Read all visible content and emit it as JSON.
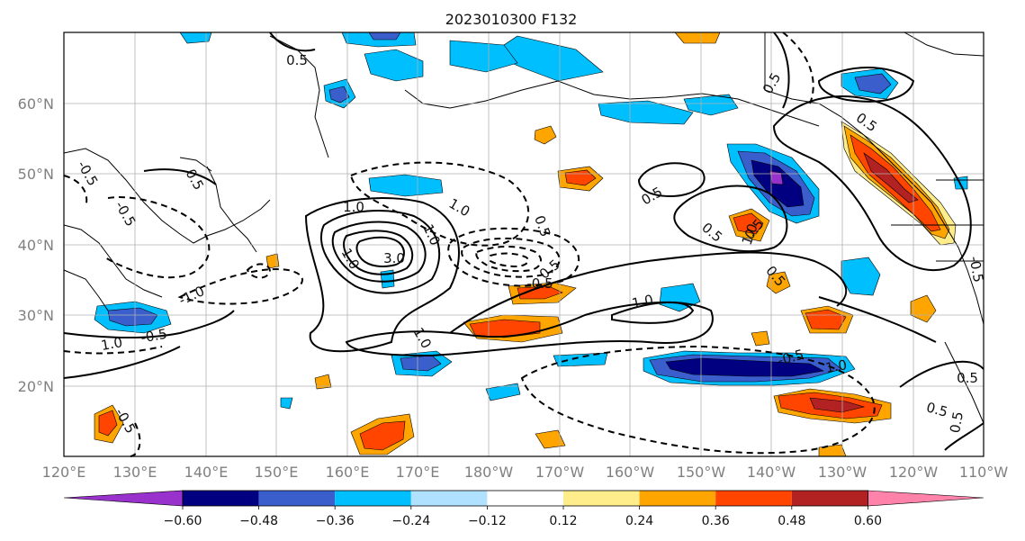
{
  "title": "2023010300 F132",
  "axes": {
    "lon_labels": [
      "120°E",
      "130°E",
      "140°E",
      "150°E",
      "160°E",
      "170°E",
      "180°W",
      "170°W",
      "160°W",
      "150°W",
      "140°W",
      "130°W",
      "120°W",
      "110°W"
    ],
    "lat_labels": [
      "60°N",
      "50°N",
      "40°N",
      "30°N",
      "20°N"
    ],
    "lon_range": [
      120,
      250
    ],
    "lat_range": [
      10,
      70
    ]
  },
  "colorbar": {
    "colors": [
      "#9932cc",
      "#000080",
      "#3a5fcd",
      "#00bfff",
      "#b0e2ff",
      "#ffffff",
      "#ffec8b",
      "#ffa500",
      "#ff4500",
      "#b22222",
      "#ff82ab"
    ],
    "tick_labels": [
      "−0.60",
      "−0.48",
      "−0.36",
      "−0.24",
      "−0.12",
      "0.12",
      "0.24",
      "0.36",
      "0.48",
      "0.60"
    ]
  },
  "contour_labels": [
    "0.5",
    "0.5",
    "0.5",
    "0.5",
    "0.5",
    "-0.5",
    "-0.5",
    "0.5",
    "1.0",
    "0.5",
    "0.5",
    "1.0",
    "3.0",
    "1.0",
    "1.0",
    "1.0",
    "1.0",
    "1.0",
    "0.5",
    "-0.5",
    "0.5",
    "-1.0",
    "1.0",
    "-0.5",
    "-0.5",
    "-0.5",
    "0.5",
    "1.0",
    "0.5",
    "0.5",
    "-0.5"
  ]
}
